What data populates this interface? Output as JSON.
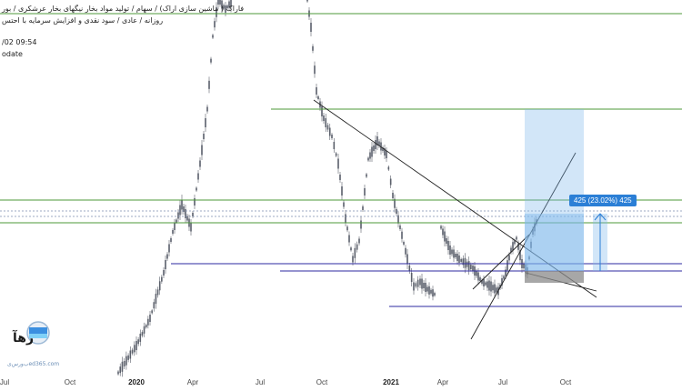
{
  "header": {
    "line1": "فاراک ( ماشین سازی اراک) / سهام / تولید مواد بخار نیگهای بخار عرشکری / بور",
    "line2": "روزانه / عادی / سود نقدی و افزایش سرمایه با احتس",
    "timestamp": "/02 09:54",
    "label": "odate"
  },
  "xaxis": {
    "labels": [
      "Jul",
      "Oct",
      "2020",
      "Apr",
      "Jul",
      "Oct",
      "2021",
      "Apr",
      "Jul",
      "Oct"
    ],
    "bold": [
      false,
      false,
      true,
      false,
      false,
      false,
      true,
      false,
      false,
      false
    ]
  },
  "measure_tag": "425 (23.02%) 425",
  "logo": {
    "name": "رهآ",
    "site": "ب‌و‌ر‌س‌ی‌ed365.com"
  },
  "colors": {
    "candle": "#5a5f6a",
    "green_line": "#4e9a3a",
    "purple_line": "#2e2aa0",
    "trend_line": "#1f1f1f",
    "target_zone": "#7fb7ec",
    "stop_zone": "#8a8a8a",
    "tag_bg": "#2b7fd6"
  }
}
